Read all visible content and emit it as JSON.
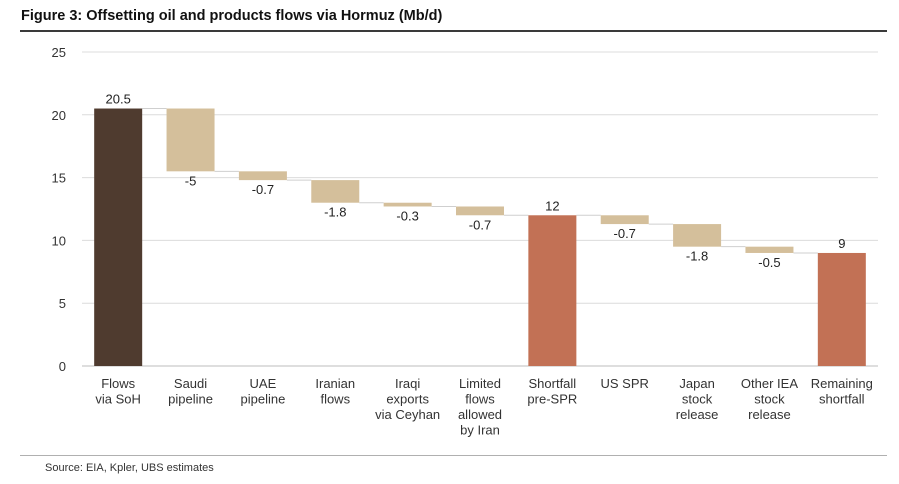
{
  "title": "Figure 3: Offsetting oil and products flows via Hormuz (Mb/d)",
  "source": "Source: EIA, Kpler, UBS estimates",
  "colors": {
    "total_dark": "#4f3b2f",
    "step": "#d4bf9b",
    "shortfall": "#c27155",
    "grid": "#dcdcdc",
    "connector": "#cfcfcf"
  },
  "chart_data": {
    "type": "bar",
    "subtype": "waterfall",
    "title": "Figure 3: Offsetting oil and products flows via Hormuz (Mb/d)",
    "xlabel": "",
    "ylabel": "",
    "ylim": [
      0,
      25
    ],
    "yticks": [
      "0",
      "5",
      "10",
      "15",
      "20",
      "25"
    ],
    "grid": true,
    "legend": "none",
    "categories": [
      [
        "Flows",
        "via SoH"
      ],
      [
        "Saudi",
        "pipeline"
      ],
      [
        "UAE",
        "pipeline"
      ],
      [
        "Iranian",
        "flows"
      ],
      [
        "Iraqi",
        "exports",
        "via Ceyhan"
      ],
      [
        "Limited",
        "flows",
        "allowed",
        "by Iran"
      ],
      [
        "Shortfall",
        "pre-SPR"
      ],
      [
        "US SPR"
      ],
      [
        "Japan",
        "stock",
        "release"
      ],
      [
        "Other IEA",
        "stock",
        "release"
      ],
      [
        "Remaining",
        "shortfall"
      ]
    ],
    "values": [
      20.5,
      -5,
      -0.7,
      -1.8,
      -0.3,
      -0.7,
      12,
      -0.7,
      -1.8,
      -0.5,
      9
    ],
    "value_labels": [
      "20.5",
      "-5",
      "-0.7",
      "-1.8",
      "-0.3",
      "-0.7",
      "12",
      "-0.7",
      "-1.8",
      "-0.5",
      "9"
    ],
    "bar_kinds": [
      "total_dark",
      "step",
      "step",
      "step",
      "step",
      "step",
      "shortfall",
      "step",
      "step",
      "step",
      "shortfall"
    ]
  }
}
